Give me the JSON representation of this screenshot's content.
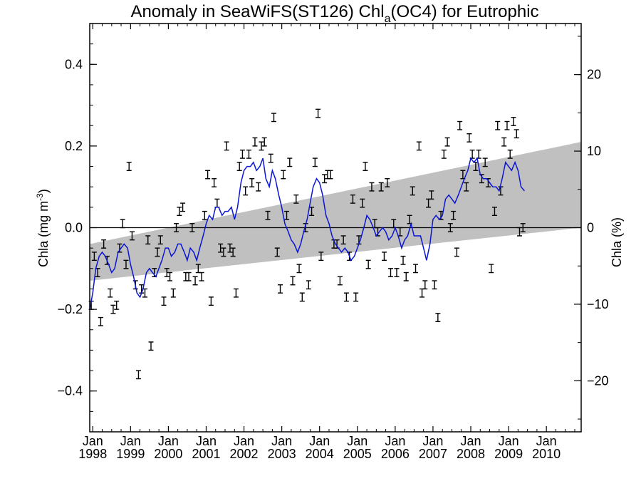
{
  "chart_data": {
    "type": "scatter",
    "title": "Anomaly in SeaWiFS(ST126) Chl",
    "title_subscript": "a",
    "title_suffix": "(OC4) for Eutrophic",
    "ylabel_left": "Chla (mg m",
    "ylabel_left_sup": "-3",
    "ylabel_left_suffix": ")",
    "ylabel_right": "Chla (%)",
    "x_range": [
      1997.92,
      2010.92
    ],
    "ylim_left": [
      -0.5,
      0.5
    ],
    "ylim_right": [
      -26.67,
      26.67
    ],
    "x_ticks": [
      {
        "value": 1998,
        "month": "Jan",
        "year": "1998"
      },
      {
        "value": 1999,
        "month": "Jan",
        "year": "1999"
      },
      {
        "value": 2000,
        "month": "Jan",
        "year": "2000"
      },
      {
        "value": 2001,
        "month": "Jan",
        "year": "2001"
      },
      {
        "value": 2002,
        "month": "Jan",
        "year": "2002"
      },
      {
        "value": 2003,
        "month": "Jan",
        "year": "2003"
      },
      {
        "value": 2004,
        "month": "Jan",
        "year": "2004"
      },
      {
        "value": 2005,
        "month": "Jan",
        "year": "2005"
      },
      {
        "value": 2006,
        "month": "Jan",
        "year": "2006"
      },
      {
        "value": 2007,
        "month": "Jan",
        "year": "2007"
      },
      {
        "value": 2008,
        "month": "Jan",
        "year": "2008"
      },
      {
        "value": 2009,
        "month": "Jan",
        "year": "2009"
      },
      {
        "value": 2010,
        "month": "Jan",
        "year": "2010"
      }
    ],
    "y_ticks_left": [
      {
        "value": -0.4,
        "label": "−0.4"
      },
      {
        "value": -0.2,
        "label": "−0.2"
      },
      {
        "value": 0.0,
        "label": "0.0"
      },
      {
        "value": 0.2,
        "label": "0.2"
      },
      {
        "value": 0.4,
        "label": "0.4"
      }
    ],
    "y_ticks_right": [
      {
        "value": -20,
        "label": "−20"
      },
      {
        "value": -10,
        "label": "−10"
      },
      {
        "value": 0,
        "label": "0"
      },
      {
        "value": 10,
        "label": "10"
      },
      {
        "value": 20,
        "label": "20"
      }
    ],
    "trend_band": {
      "x": [
        1997.92,
        2010.92
      ],
      "upper": [
        -0.04,
        0.21
      ],
      "lower": [
        -0.13,
        0.0
      ]
    },
    "zero_line": 0,
    "error_bar_halfwidth": 0.01,
    "monthly_anomalies": [
      [
        1997.96,
        -0.19
      ],
      [
        1998.04,
        -0.07
      ],
      [
        1998.13,
        -0.11
      ],
      [
        1998.21,
        -0.23
      ],
      [
        1998.29,
        -0.04
      ],
      [
        1998.38,
        -0.08
      ],
      [
        1998.46,
        -0.16
      ],
      [
        1998.54,
        -0.2
      ],
      [
        1998.63,
        -0.19
      ],
      [
        1998.71,
        -0.05
      ],
      [
        1998.79,
        0.01
      ],
      [
        1998.88,
        -0.09
      ],
      [
        1998.96,
        0.15
      ],
      [
        1999.04,
        -0.02
      ],
      [
        1999.13,
        -0.14
      ],
      [
        1999.21,
        -0.36
      ],
      [
        1999.29,
        -0.15
      ],
      [
        1999.38,
        -0.16
      ],
      [
        1999.46,
        -0.03
      ],
      [
        1999.54,
        -0.29
      ],
      [
        1999.63,
        -0.11
      ],
      [
        1999.71,
        -0.06
      ],
      [
        1999.79,
        -0.03
      ],
      [
        1999.88,
        -0.18
      ],
      [
        1999.96,
        -0.11
      ],
      [
        2000.04,
        -0.12
      ],
      [
        2000.13,
        -0.16
      ],
      [
        2000.21,
        0.0
      ],
      [
        2000.29,
        0.04
      ],
      [
        2000.38,
        0.05
      ],
      [
        2000.46,
        -0.12
      ],
      [
        2000.54,
        -0.12
      ],
      [
        2000.63,
        0.0
      ],
      [
        2000.71,
        -0.13
      ],
      [
        2000.79,
        -0.1
      ],
      [
        2000.88,
        -0.12
      ],
      [
        2000.96,
        0.03
      ],
      [
        2001.04,
        0.13
      ],
      [
        2001.13,
        -0.18
      ],
      [
        2001.21,
        0.11
      ],
      [
        2001.29,
        0.06
      ],
      [
        2001.38,
        -0.05
      ],
      [
        2001.46,
        -0.06
      ],
      [
        2001.54,
        0.2
      ],
      [
        2001.63,
        -0.05
      ],
      [
        2001.71,
        -0.06
      ],
      [
        2001.79,
        -0.16
      ],
      [
        2001.88,
        0.15
      ],
      [
        2001.96,
        0.18
      ],
      [
        2002.04,
        0.09
      ],
      [
        2002.13,
        0.18
      ],
      [
        2002.21,
        0.11
      ],
      [
        2002.29,
        0.21
      ],
      [
        2002.38,
        0.1
      ],
      [
        2002.46,
        0.2
      ],
      [
        2002.54,
        0.21
      ],
      [
        2002.63,
        0.03
      ],
      [
        2002.71,
        0.17
      ],
      [
        2002.79,
        0.27
      ],
      [
        2002.88,
        -0.06
      ],
      [
        2002.96,
        -0.15
      ],
      [
        2003.04,
        0.13
      ],
      [
        2003.13,
        0.03
      ],
      [
        2003.21,
        0.16
      ],
      [
        2003.29,
        -0.13
      ],
      [
        2003.38,
        0.07
      ],
      [
        2003.46,
        -0.1
      ],
      [
        2003.54,
        -0.17
      ],
      [
        2003.63,
        0.0
      ],
      [
        2003.71,
        -0.14
      ],
      [
        2003.79,
        0.04
      ],
      [
        2003.88,
        0.16
      ],
      [
        2003.96,
        0.28
      ],
      [
        2004.04,
        -0.07
      ],
      [
        2004.13,
        0.12
      ],
      [
        2004.21,
        0.13
      ],
      [
        2004.29,
        0.13
      ],
      [
        2004.38,
        -0.04
      ],
      [
        2004.46,
        -0.04
      ],
      [
        2004.54,
        -0.13
      ],
      [
        2004.63,
        -0.03
      ],
      [
        2004.71,
        -0.17
      ],
      [
        2004.79,
        -0.07
      ],
      [
        2004.88,
        0.07
      ],
      [
        2004.96,
        -0.17
      ],
      [
        2005.04,
        -0.03
      ],
      [
        2005.13,
        0.06
      ],
      [
        2005.21,
        0.15
      ],
      [
        2005.29,
        -0.09
      ],
      [
        2005.38,
        0.1
      ],
      [
        2005.46,
        0.01
      ],
      [
        2005.54,
        -0.01
      ],
      [
        2005.63,
        0.1
      ],
      [
        2005.71,
        -0.07
      ],
      [
        2005.79,
        0.11
      ],
      [
        2005.88,
        -0.11
      ],
      [
        2005.96,
        0.01
      ],
      [
        2006.04,
        -0.11
      ],
      [
        2006.13,
        -0.01
      ],
      [
        2006.21,
        -0.08
      ],
      [
        2006.29,
        -0.12
      ],
      [
        2006.38,
        0.02
      ],
      [
        2006.46,
        0.09
      ],
      [
        2006.54,
        -0.1
      ],
      [
        2006.63,
        0.2
      ],
      [
        2006.71,
        -0.16
      ],
      [
        2006.79,
        -0.14
      ],
      [
        2006.88,
        0.06
      ],
      [
        2006.96,
        0.08
      ],
      [
        2007.04,
        -0.14
      ],
      [
        2007.13,
        -0.22
      ],
      [
        2007.21,
        0.03
      ],
      [
        2007.29,
        0.18
      ],
      [
        2007.38,
        0.21
      ],
      [
        2007.46,
        0.0
      ],
      [
        2007.54,
        0.03
      ],
      [
        2007.63,
        -0.06
      ],
      [
        2007.71,
        0.25
      ],
      [
        2007.79,
        0.13
      ],
      [
        2007.88,
        0.1
      ],
      [
        2007.96,
        0.22
      ],
      [
        2008.04,
        0.18
      ],
      [
        2008.13,
        0.15
      ],
      [
        2008.21,
        0.18
      ],
      [
        2008.29,
        0.12
      ],
      [
        2008.38,
        0.16
      ],
      [
        2008.46,
        0.11
      ],
      [
        2008.54,
        -0.1
      ],
      [
        2008.63,
        0.04
      ],
      [
        2008.71,
        0.25
      ],
      [
        2008.79,
        0.09
      ],
      [
        2008.88,
        0.21
      ],
      [
        2008.96,
        0.25
      ],
      [
        2009.04,
        0.18
      ],
      [
        2009.13,
        0.26
      ],
      [
        2009.21,
        0.23
      ],
      [
        2009.29,
        -0.01
      ],
      [
        2009.38,
        0.0
      ]
    ],
    "running_mean": [
      [
        1997.92,
        -0.2
      ],
      [
        1998.0,
        -0.16
      ],
      [
        1998.08,
        -0.1
      ],
      [
        1998.17,
        -0.07
      ],
      [
        1998.25,
        -0.06
      ],
      [
        1998.33,
        -0.07
      ],
      [
        1998.42,
        -0.09
      ],
      [
        1998.5,
        -0.11
      ],
      [
        1998.58,
        -0.1
      ],
      [
        1998.67,
        -0.06
      ],
      [
        1998.75,
        -0.05
      ],
      [
        1998.83,
        -0.04
      ],
      [
        1998.92,
        -0.05
      ],
      [
        1999.0,
        -0.09
      ],
      [
        1999.08,
        -0.12
      ],
      [
        1999.17,
        -0.16
      ],
      [
        1999.25,
        -0.17
      ],
      [
        1999.33,
        -0.15
      ],
      [
        1999.42,
        -0.11
      ],
      [
        1999.5,
        -0.1
      ],
      [
        1999.58,
        -0.11
      ],
      [
        1999.67,
        -0.12
      ],
      [
        1999.75,
        -0.1
      ],
      [
        1999.83,
        -0.08
      ],
      [
        1999.92,
        -0.05
      ],
      [
        2000.0,
        -0.05
      ],
      [
        2000.08,
        -0.07
      ],
      [
        2000.17,
        -0.06
      ],
      [
        2000.25,
        -0.04
      ],
      [
        2000.33,
        -0.04
      ],
      [
        2000.42,
        -0.06
      ],
      [
        2000.5,
        -0.08
      ],
      [
        2000.58,
        -0.05
      ],
      [
        2000.67,
        -0.06
      ],
      [
        2000.75,
        -0.08
      ],
      [
        2000.83,
        -0.05
      ],
      [
        2000.92,
        -0.02
      ],
      [
        2001.0,
        0.01
      ],
      [
        2001.08,
        0.03
      ],
      [
        2001.17,
        0.02
      ],
      [
        2001.25,
        0.05
      ],
      [
        2001.33,
        0.05
      ],
      [
        2001.42,
        0.03
      ],
      [
        2001.5,
        0.04
      ],
      [
        2001.58,
        0.04
      ],
      [
        2001.67,
        0.05
      ],
      [
        2001.75,
        0.02
      ],
      [
        2001.83,
        0.05
      ],
      [
        2001.92,
        0.11
      ],
      [
        2002.0,
        0.14
      ],
      [
        2002.08,
        0.15
      ],
      [
        2002.17,
        0.15
      ],
      [
        2002.25,
        0.16
      ],
      [
        2002.33,
        0.14
      ],
      [
        2002.42,
        0.15
      ],
      [
        2002.5,
        0.17
      ],
      [
        2002.58,
        0.12
      ],
      [
        2002.67,
        0.1
      ],
      [
        2002.75,
        0.14
      ],
      [
        2002.83,
        0.12
      ],
      [
        2002.92,
        0.08
      ],
      [
        2003.0,
        0.05
      ],
      [
        2003.08,
        0.01
      ],
      [
        2003.17,
        -0.01
      ],
      [
        2003.25,
        -0.03
      ],
      [
        2003.33,
        -0.04
      ],
      [
        2003.42,
        -0.06
      ],
      [
        2003.5,
        -0.04
      ],
      [
        2003.58,
        -0.01
      ],
      [
        2003.67,
        0.02
      ],
      [
        2003.75,
        0.06
      ],
      [
        2003.83,
        0.1
      ],
      [
        2003.92,
        0.12
      ],
      [
        2004.0,
        0.11
      ],
      [
        2004.08,
        0.08
      ],
      [
        2004.17,
        0.03
      ],
      [
        2004.25,
        0.01
      ],
      [
        2004.33,
        -0.02
      ],
      [
        2004.42,
        -0.04
      ],
      [
        2004.5,
        -0.05
      ],
      [
        2004.58,
        -0.06
      ],
      [
        2004.67,
        -0.05
      ],
      [
        2004.75,
        -0.06
      ],
      [
        2004.83,
        -0.08
      ],
      [
        2004.92,
        -0.07
      ],
      [
        2005.0,
        -0.05
      ],
      [
        2005.08,
        -0.03
      ],
      [
        2005.17,
        0.0
      ],
      [
        2005.25,
        0.03
      ],
      [
        2005.33,
        0.02
      ],
      [
        2005.42,
        0.0
      ],
      [
        2005.5,
        -0.02
      ],
      [
        2005.58,
        -0.01
      ],
      [
        2005.67,
        0.0
      ],
      [
        2005.75,
        -0.01
      ],
      [
        2005.83,
        -0.03
      ],
      [
        2005.92,
        -0.02
      ],
      [
        2006.0,
        0.0
      ],
      [
        2006.08,
        -0.02
      ],
      [
        2006.17,
        -0.05
      ],
      [
        2006.25,
        -0.03
      ],
      [
        2006.33,
        -0.02
      ],
      [
        2006.42,
        0.01
      ],
      [
        2006.5,
        -0.02
      ],
      [
        2006.58,
        -0.02
      ],
      [
        2006.67,
        -0.02
      ],
      [
        2006.75,
        -0.05
      ],
      [
        2006.83,
        -0.08
      ],
      [
        2006.92,
        -0.04
      ],
      [
        2007.0,
        0.02
      ],
      [
        2007.08,
        0.03
      ],
      [
        2007.17,
        0.02
      ],
      [
        2007.25,
        0.03
      ],
      [
        2007.33,
        0.07
      ],
      [
        2007.42,
        0.08
      ],
      [
        2007.5,
        0.07
      ],
      [
        2007.58,
        0.06
      ],
      [
        2007.67,
        0.08
      ],
      [
        2007.75,
        0.1
      ],
      [
        2007.83,
        0.12
      ],
      [
        2007.92,
        0.14
      ],
      [
        2008.0,
        0.17
      ],
      [
        2008.08,
        0.16
      ],
      [
        2008.17,
        0.17
      ],
      [
        2008.25,
        0.13
      ],
      [
        2008.33,
        0.12
      ],
      [
        2008.42,
        0.12
      ],
      [
        2008.5,
        0.11
      ],
      [
        2008.58,
        0.1
      ],
      [
        2008.67,
        0.1
      ],
      [
        2008.75,
        0.09
      ],
      [
        2008.83,
        0.12
      ],
      [
        2008.92,
        0.16
      ],
      [
        2009.0,
        0.15
      ],
      [
        2009.08,
        0.14
      ],
      [
        2009.17,
        0.16
      ],
      [
        2009.25,
        0.14
      ],
      [
        2009.33,
        0.1
      ],
      [
        2009.42,
        0.09
      ]
    ]
  }
}
